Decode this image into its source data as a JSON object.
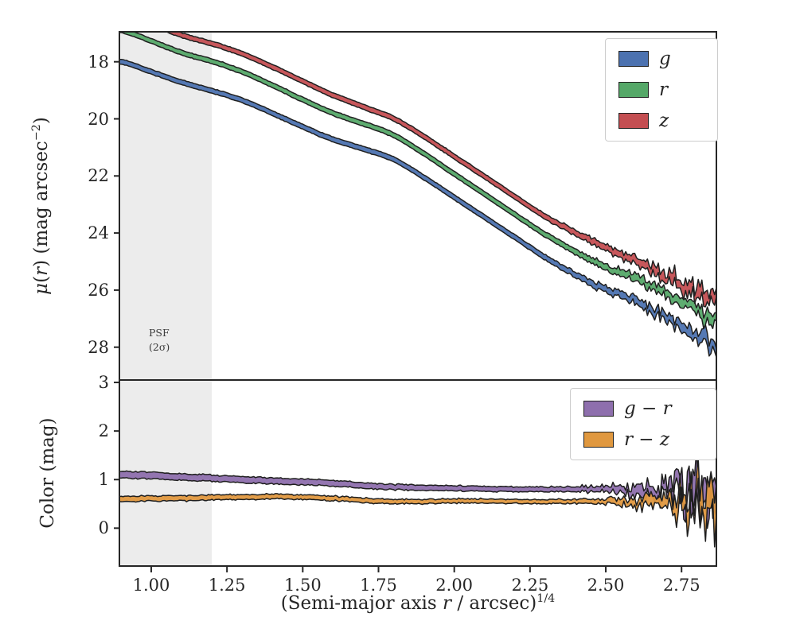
{
  "figure": {
    "background": "#ffffff",
    "text_color": "#262626",
    "spine_color": "#262626"
  },
  "xlabel": {
    "p1": "(Semi-major axis ",
    "rvar": "r",
    "p2": " / arcsec)",
    "sup": "1/4"
  },
  "chart_data": [
    {
      "id": "surface-brightness-panel",
      "type": "line-band",
      "ylabel_parts": {
        "mu": "μ",
        "p1": "(",
        "rvar": "r",
        "p2": ") (mag arcsec",
        "sup": "−2",
        "p3": ")"
      },
      "xlim": [
        0.895,
        2.865
      ],
      "ylim": [
        16.95,
        29.15
      ],
      "y_axis_inverted": true,
      "yticks": {
        "values": [
          18,
          20,
          22,
          24,
          26,
          28
        ],
        "labels": [
          "18",
          "20",
          "22",
          "24",
          "26",
          "28"
        ]
      },
      "psf_region": {
        "x0": 0.895,
        "x1": 1.2,
        "color": "#ececec",
        "line1": "PSF",
        "line2": "(2σ)"
      },
      "legend_position": "upper right",
      "series": [
        {
          "label": "g",
          "fill": "#4C72B0",
          "edge": "#1f1f1f",
          "seed": 101,
          "half": [
            0.08,
            0.09
          ],
          "noise_start": 2.15,
          "noise_base": 0.012,
          "noise_max": 0.32,
          "noise_exp": 2.2,
          "x": [
            0.9,
            1.0,
            1.1,
            1.2,
            1.3,
            1.4,
            1.5,
            1.6,
            1.7,
            1.8,
            1.9,
            2.0,
            2.1,
            2.2,
            2.3,
            2.4,
            2.5,
            2.6,
            2.7,
            2.8,
            2.85
          ],
          "y": [
            18.0,
            18.35,
            18.72,
            19.02,
            19.35,
            19.8,
            20.28,
            20.72,
            21.05,
            21.42,
            22.05,
            22.75,
            23.45,
            24.15,
            24.85,
            25.45,
            25.98,
            26.4,
            26.95,
            27.55,
            27.85
          ]
        },
        {
          "label": "r",
          "fill": "#55A868",
          "edge": "#1f1f1f",
          "seed": 202,
          "half": [
            0.08,
            0.09
          ],
          "noise_start": 2.15,
          "noise_base": 0.012,
          "noise_max": 0.3,
          "noise_exp": 2.2,
          "x": [
            0.9,
            1.0,
            1.1,
            1.2,
            1.3,
            1.4,
            1.5,
            1.6,
            1.7,
            1.8,
            1.9,
            2.0,
            2.1,
            2.2,
            2.3,
            2.4,
            2.5,
            2.6,
            2.7,
            2.8,
            2.85
          ],
          "y": [
            16.9,
            17.27,
            17.68,
            17.98,
            18.35,
            18.82,
            19.33,
            19.8,
            20.17,
            20.57,
            21.22,
            21.93,
            22.64,
            23.35,
            24.05,
            24.65,
            25.18,
            25.62,
            26.15,
            26.7,
            26.95
          ]
        },
        {
          "label": "z",
          "fill": "#C44E52",
          "edge": "#1f1f1f",
          "seed": 303,
          "half": [
            0.08,
            0.09
          ],
          "noise_start": 2.15,
          "noise_base": 0.012,
          "noise_max": 0.36,
          "noise_exp": 2.2,
          "x": [
            0.9,
            1.0,
            1.1,
            1.2,
            1.3,
            1.4,
            1.5,
            1.6,
            1.7,
            1.8,
            1.9,
            2.0,
            2.1,
            2.2,
            2.3,
            2.4,
            2.5,
            2.6,
            2.7,
            2.8,
            2.85
          ],
          "y": [
            16.3,
            16.66,
            17.07,
            17.36,
            17.72,
            18.18,
            18.68,
            19.17,
            19.58,
            19.99,
            20.62,
            21.32,
            22.02,
            22.73,
            23.42,
            24.0,
            24.52,
            24.98,
            25.5,
            26.05,
            26.3
          ]
        }
      ]
    },
    {
      "id": "color-panel",
      "type": "line-band",
      "ylabel": "Color (mag)",
      "xlim": [
        0.895,
        2.865
      ],
      "ylim": [
        3.05,
        -0.78
      ],
      "yticks": {
        "values": [
          0,
          1,
          2,
          3
        ],
        "labels": [
          "0",
          "1",
          "2",
          "3"
        ]
      },
      "xticks": {
        "values": [
          1.0,
          1.25,
          1.5,
          1.75,
          2.0,
          2.25,
          2.5,
          2.75
        ],
        "labels": [
          "1.00",
          "1.25",
          "1.50",
          "1.75",
          "2.00",
          "2.25",
          "2.50",
          "2.75"
        ]
      },
      "psf_region": {
        "x0": 0.895,
        "x1": 1.2,
        "color": "#ececec"
      },
      "legend_position": "upper right",
      "series": [
        {
          "label": "g − r",
          "fill": "#8E6FAD",
          "edge": "#1f1f1f",
          "seed": 404,
          "half": [
            0.065,
            0.035
          ],
          "noise_start": 2.2,
          "noise_base": 0.015,
          "noise_max": 0.85,
          "noise_exp": 3.5,
          "x": [
            0.9,
            1.0,
            1.1,
            1.2,
            1.3,
            1.4,
            1.5,
            1.6,
            1.7,
            1.8,
            1.9,
            2.0,
            2.1,
            2.2,
            2.3,
            2.4,
            2.5,
            2.6,
            2.7,
            2.8,
            2.85
          ],
          "y": [
            1.1,
            1.08,
            1.05,
            1.03,
            1.0,
            0.97,
            0.95,
            0.92,
            0.88,
            0.85,
            0.83,
            0.82,
            0.81,
            0.8,
            0.8,
            0.8,
            0.8,
            0.78,
            0.8,
            0.85,
            0.88
          ]
        },
        {
          "label": "r − z",
          "fill": "#E0983F",
          "edge": "#1f1f1f",
          "seed": 505,
          "half": [
            0.05,
            0.03
          ],
          "noise_start": 2.2,
          "noise_base": 0.015,
          "noise_max": 0.7,
          "noise_exp": 3.5,
          "x": [
            0.9,
            1.0,
            1.1,
            1.2,
            1.3,
            1.4,
            1.5,
            1.6,
            1.7,
            1.8,
            1.9,
            2.0,
            2.1,
            2.2,
            2.3,
            2.4,
            2.5,
            2.6,
            2.7,
            2.8,
            2.85
          ],
          "y": [
            0.6,
            0.61,
            0.62,
            0.63,
            0.64,
            0.65,
            0.64,
            0.61,
            0.57,
            0.55,
            0.55,
            0.56,
            0.56,
            0.55,
            0.55,
            0.55,
            0.55,
            0.54,
            0.55,
            0.58,
            0.6
          ]
        }
      ]
    }
  ]
}
